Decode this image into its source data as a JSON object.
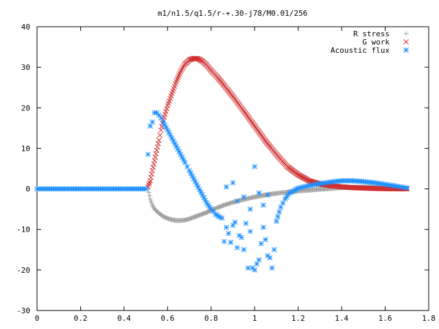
{
  "chart_data": {
    "type": "scatter",
    "title": "m1/n1.5/q1.5/r-+.30-j78/M0.01/256",
    "xlabel": "",
    "ylabel": "",
    "xlim": [
      0,
      1.8
    ],
    "ylim": [
      -30,
      40
    ],
    "x_ticks": [
      0,
      0.2,
      0.4,
      0.6,
      0.8,
      1,
      1.2,
      1.4,
      1.6,
      1.8
    ],
    "x_tick_labels": [
      "0",
      "0.2",
      "0.4",
      "0.6",
      "0.8",
      "1",
      "1.2",
      "1.4",
      "1.6",
      "1.8"
    ],
    "y_ticks": [
      -30,
      -20,
      -10,
      0,
      10,
      20,
      30,
      40
    ],
    "y_tick_labels": [
      "-30",
      "-20",
      "-10",
      "0",
      "10",
      "20",
      "30",
      "40"
    ],
    "grid": false,
    "legend_position": "top-right",
    "series": [
      {
        "name": "R stress",
        "marker": "plus",
        "color": "#a0a0a0",
        "points": [
          [
            0.51,
            0
          ],
          [
            0.52,
            -2.5
          ],
          [
            0.53,
            -4.0
          ],
          [
            0.54,
            -5.0
          ],
          [
            0.56,
            -6.0
          ],
          [
            0.58,
            -6.8
          ],
          [
            0.6,
            -7.3
          ],
          [
            0.62,
            -7.6
          ],
          [
            0.64,
            -7.8
          ],
          [
            0.66,
            -7.8
          ],
          [
            0.68,
            -7.7
          ],
          [
            0.7,
            -7.4
          ],
          [
            0.72,
            -7.0
          ],
          [
            0.75,
            -6.4
          ],
          [
            0.78,
            -5.8
          ],
          [
            0.8,
            -5.3
          ],
          [
            0.83,
            -4.6
          ],
          [
            0.86,
            -4.0
          ],
          [
            0.9,
            -3.3
          ],
          [
            0.95,
            -2.6
          ],
          [
            1.0,
            -2.0
          ],
          [
            1.05,
            -1.5
          ],
          [
            1.1,
            -1.1
          ],
          [
            1.15,
            -0.8
          ],
          [
            1.2,
            -0.5
          ],
          [
            1.25,
            -0.3
          ],
          [
            1.3,
            -0.1
          ],
          [
            1.35,
            0.1
          ],
          [
            1.4,
            0.3
          ],
          [
            1.45,
            0.4
          ],
          [
            1.5,
            0.45
          ],
          [
            1.55,
            0.4
          ],
          [
            1.6,
            0.3
          ],
          [
            1.65,
            0.2
          ],
          [
            1.7,
            0.1
          ]
        ]
      },
      {
        "name": "G work",
        "marker": "cross",
        "color": "#d03030",
        "points": [
          [
            0.51,
            0.5
          ],
          [
            0.52,
            2.0
          ],
          [
            0.53,
            4.5
          ],
          [
            0.54,
            7.0
          ],
          [
            0.55,
            9.5
          ],
          [
            0.56,
            12.0
          ],
          [
            0.57,
            14.5
          ],
          [
            0.58,
            17.0
          ],
          [
            0.6,
            20.5
          ],
          [
            0.62,
            23.5
          ],
          [
            0.64,
            26.5
          ],
          [
            0.66,
            29.0
          ],
          [
            0.68,
            30.8
          ],
          [
            0.7,
            31.8
          ],
          [
            0.72,
            32.2
          ],
          [
            0.74,
            32.1
          ],
          [
            0.76,
            31.5
          ],
          [
            0.78,
            30.5
          ],
          [
            0.8,
            29.2
          ],
          [
            0.83,
            27.5
          ],
          [
            0.86,
            25.5
          ],
          [
            0.9,
            22.8
          ],
          [
            0.95,
            19.2
          ],
          [
            1.0,
            15.5
          ],
          [
            1.05,
            11.8
          ],
          [
            1.1,
            8.5
          ],
          [
            1.15,
            5.5
          ],
          [
            1.2,
            3.5
          ],
          [
            1.25,
            2.0
          ],
          [
            1.3,
            1.2
          ],
          [
            1.35,
            0.8
          ],
          [
            1.4,
            0.5
          ],
          [
            1.45,
            0.3
          ],
          [
            1.5,
            0.2
          ],
          [
            1.55,
            0.1
          ],
          [
            1.6,
            0.05
          ],
          [
            1.65,
            0.02
          ],
          [
            1.7,
            0.0
          ]
        ]
      },
      {
        "name": "Acoustic flux",
        "marker": "star",
        "color": "#1e90ff",
        "points": [
          [
            0,
            0
          ],
          [
            0.05,
            0
          ],
          [
            0.1,
            0
          ],
          [
            0.15,
            0
          ],
          [
            0.2,
            0
          ],
          [
            0.25,
            0
          ],
          [
            0.3,
            0
          ],
          [
            0.35,
            0
          ],
          [
            0.4,
            0
          ],
          [
            0.45,
            0
          ],
          [
            0.5,
            0
          ],
          [
            0.51,
            8.5
          ],
          [
            0.52,
            15.5
          ],
          [
            0.53,
            16.5
          ],
          [
            0.54,
            18.8
          ],
          [
            0.55,
            18.8
          ],
          [
            0.56,
            18.2
          ],
          [
            0.57,
            17.5
          ],
          [
            0.58,
            16.5
          ],
          [
            0.6,
            14.5
          ],
          [
            0.62,
            12.5
          ],
          [
            0.64,
            10.5
          ],
          [
            0.66,
            8.5
          ],
          [
            0.68,
            6.5
          ],
          [
            0.7,
            4.5
          ],
          [
            0.72,
            2.5
          ],
          [
            0.74,
            0.5
          ],
          [
            0.76,
            -1.5
          ],
          [
            0.78,
            -3.5
          ],
          [
            0.8,
            -5.0
          ],
          [
            0.82,
            -6.2
          ],
          [
            0.84,
            -7.0
          ],
          [
            0.85,
            -7.2
          ],
          [
            0.86,
            -13.0
          ],
          [
            0.87,
            -9.5
          ],
          [
            0.88,
            -11.0
          ],
          [
            0.89,
            -13.2
          ],
          [
            0.9,
            -9.0
          ],
          [
            0.91,
            -8.2
          ],
          [
            0.92,
            -14.5
          ],
          [
            0.93,
            -11.5
          ],
          [
            0.94,
            -12.0
          ],
          [
            0.95,
            -15.0
          ],
          [
            0.96,
            -8.5
          ],
          [
            0.97,
            -19.5
          ],
          [
            0.98,
            -10.5
          ],
          [
            0.99,
            -19.5
          ],
          [
            1.0,
            -20.0
          ],
          [
            1.01,
            -18.5
          ],
          [
            1.02,
            -17.5
          ],
          [
            1.03,
            -13.5
          ],
          [
            1.04,
            -9.5
          ],
          [
            1.05,
            -12.5
          ],
          [
            1.06,
            -16.5
          ],
          [
            1.07,
            -17.0
          ],
          [
            1.08,
            -19.5
          ],
          [
            1.09,
            -15.0
          ],
          [
            1.1,
            -8.0
          ],
          [
            1.12,
            -4.5
          ],
          [
            1.14,
            -2.5
          ],
          [
            1.16,
            -1.0
          ],
          [
            1.18,
            -0.5
          ],
          [
            1.2,
            0.2
          ],
          [
            1.25,
            0.8
          ],
          [
            1.3,
            1.3
          ],
          [
            1.35,
            1.7
          ],
          [
            1.4,
            2.0
          ],
          [
            1.45,
            2.0
          ],
          [
            1.5,
            1.8
          ],
          [
            1.55,
            1.5
          ],
          [
            1.6,
            1.1
          ],
          [
            1.65,
            0.7
          ],
          [
            1.7,
            0.2
          ],
          [
            0.87,
            0.5
          ],
          [
            0.9,
            1.5
          ],
          [
            0.92,
            -3.0
          ],
          [
            0.95,
            -2.0
          ],
          [
            0.98,
            -5.0
          ],
          [
            1.0,
            5.5
          ],
          [
            1.02,
            -1.0
          ],
          [
            1.04,
            -4.0
          ],
          [
            1.06,
            -1.5
          ]
        ]
      }
    ]
  }
}
